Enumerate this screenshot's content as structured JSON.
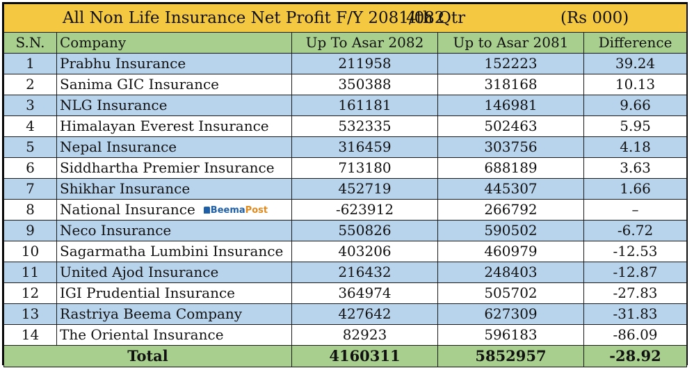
{
  "title": {
    "text": "All Non Life Insurance Net Profit  F/Y 2081/082",
    "quarter": "4th Qtr",
    "unit": "(Rs 000)"
  },
  "headers": {
    "sn": "S.N.",
    "company": "Company",
    "col_2082": "Up To Asar 2082",
    "col_2081": "Up to Asar 2081",
    "difference": "Difference"
  },
  "rows": [
    {
      "sn": "1",
      "company": "Prabhu Insurance",
      "v2082": "211958",
      "v2081": "152223",
      "diff": "39.24"
    },
    {
      "sn": "2",
      "company": "Sanima GIC Insurance",
      "v2082": "350388",
      "v2081": "318168",
      "diff": "10.13"
    },
    {
      "sn": "3",
      "company": "NLG Insurance",
      "v2082": "161181",
      "v2081": "146981",
      "diff": "9.66"
    },
    {
      "sn": "4",
      "company": "Himalayan Everest Insurance",
      "v2082": "532335",
      "v2081": "502463",
      "diff": "5.95"
    },
    {
      "sn": "5",
      "company": "Nepal Insurance",
      "v2082": "316459",
      "v2081": "303756",
      "diff": "4.18"
    },
    {
      "sn": "6",
      "company": "Siddhartha Premier Insurance",
      "v2082": "713180",
      "v2081": "688189",
      "diff": "3.63"
    },
    {
      "sn": "7",
      "company": "Shikhar Insurance",
      "v2082": "452719",
      "v2081": "445307",
      "diff": "1.66"
    },
    {
      "sn": "8",
      "company": "National Insurance",
      "v2082": "-623912",
      "v2081": "266792",
      "diff": "–"
    },
    {
      "sn": "9",
      "company": "Neco Insurance",
      "v2082": "550826",
      "v2081": "590502",
      "diff": "-6.72"
    },
    {
      "sn": "10",
      "company": "Sagarmatha Lumbini Insurance",
      "v2082": "403206",
      "v2081": "460979",
      "diff": "-12.53"
    },
    {
      "sn": "11",
      "company": "United Ajod Insurance",
      "v2082": "216432",
      "v2081": "248403",
      "diff": "-12.87"
    },
    {
      "sn": "12",
      "company": "IGI Prudential Insurance",
      "v2082": "364974",
      "v2081": "505702",
      "diff": "-27.83"
    },
    {
      "sn": "13",
      "company": "Rastriya Beema Company",
      "v2082": "427642",
      "v2081": "627309",
      "diff": "-31.83"
    },
    {
      "sn": "14",
      "company": "The Oriental Insurance",
      "v2082": "82923",
      "v2081": "596183",
      "diff": "-86.09"
    }
  ],
  "total": {
    "label": "Total",
    "v2082": "4160311",
    "v2081": "5852957",
    "diff": "-28.92"
  },
  "watermark": {
    "beema": "Beema",
    "post": "Post",
    "icon": "building-icon"
  },
  "colors": {
    "title_bg": "#f5c842",
    "header_bg": "#a8cf8e",
    "stripe_bg": "#b8d3ec",
    "brand_blue": "#1f5fa8",
    "brand_orange": "#e08a1e"
  }
}
